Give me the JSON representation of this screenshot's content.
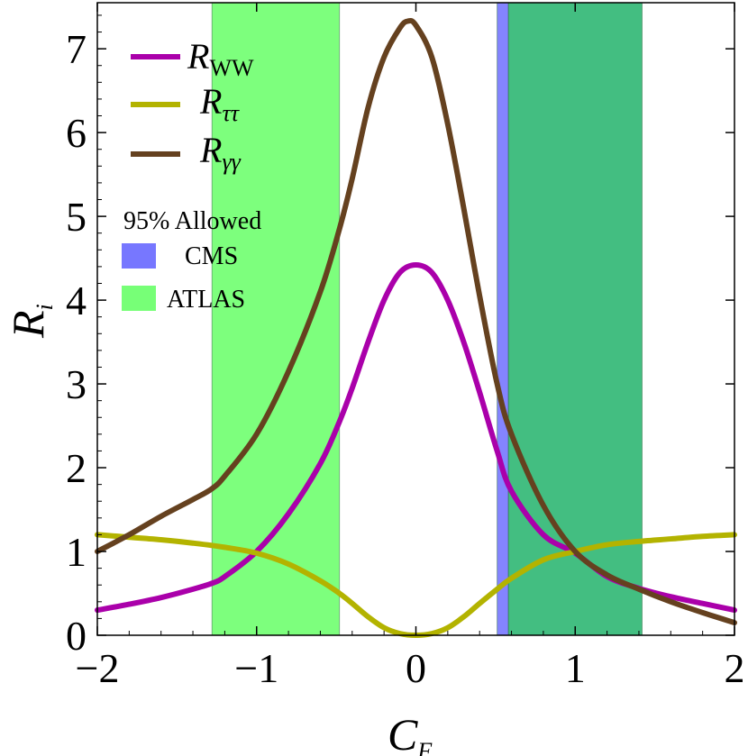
{
  "chart_data": {
    "type": "line",
    "xlabel": {
      "main": "C",
      "sub": "F"
    },
    "ylabel": {
      "main": "R",
      "sub": "i"
    },
    "xlim": [
      -2,
      2
    ],
    "ylim": [
      0,
      7.55
    ],
    "xticks": [
      {
        "value": -2,
        "label": "−2"
      },
      {
        "value": -1,
        "label": "−1"
      },
      {
        "value": 0,
        "label": "0"
      },
      {
        "value": 1,
        "label": "1"
      },
      {
        "value": 2,
        "label": "2"
      }
    ],
    "yticks": [
      {
        "value": 0,
        "label": "0"
      },
      {
        "value": 1,
        "label": "1"
      },
      {
        "value": 2,
        "label": "2"
      },
      {
        "value": 3,
        "label": "3"
      },
      {
        "value": 4,
        "label": "4"
      },
      {
        "value": 5,
        "label": "5"
      },
      {
        "value": 6,
        "label": "6"
      },
      {
        "value": 7,
        "label": "7"
      }
    ],
    "bands": [
      {
        "name": "ATLAS",
        "x": [
          -1.28,
          -0.48
        ],
        "color": "#66ff66",
        "opacity": 0.85
      },
      {
        "name": "ATLAS",
        "x": [
          0.58,
          1.42
        ],
        "color": "#22b36b",
        "opacity": 0.85
      },
      {
        "name": "CMS",
        "x": [
          0.51,
          0.58
        ],
        "color": "#7777ff",
        "opacity": 0.9
      }
    ],
    "series": [
      {
        "name": "R_WW",
        "label_main": "R",
        "label_sub": "WW",
        "color": "#aa00aa",
        "x": [
          -2,
          -1.8,
          -1.6,
          -1.4,
          -1.28,
          -1.2,
          -1.0,
          -0.8,
          -0.6,
          -0.48,
          -0.4,
          -0.3,
          -0.2,
          -0.1,
          0,
          0.1,
          0.2,
          0.3,
          0.4,
          0.51,
          0.6,
          0.8,
          1.0,
          1.2,
          1.4,
          1.6,
          1.8,
          2
        ],
        "y": [
          0.3,
          0.37,
          0.45,
          0.55,
          0.62,
          0.7,
          1.0,
          1.45,
          2.05,
          2.55,
          2.95,
          3.5,
          4.0,
          4.33,
          4.42,
          4.33,
          4.0,
          3.5,
          2.9,
          2.2,
          1.72,
          1.2,
          0.98,
          0.7,
          0.56,
          0.46,
          0.38,
          0.3
        ]
      },
      {
        "name": "R_ττ",
        "label_main": "R",
        "label_sub": "ττ",
        "color": "#b3b300",
        "x": [
          -2,
          -1.8,
          -1.6,
          -1.4,
          -1.2,
          -1.0,
          -0.8,
          -0.6,
          -0.48,
          -0.4,
          -0.3,
          -0.2,
          -0.1,
          0,
          0.1,
          0.2,
          0.3,
          0.4,
          0.51,
          0.6,
          0.8,
          1.0,
          1.2,
          1.4,
          1.6,
          1.8,
          2
        ],
        "y": [
          1.2,
          1.17,
          1.14,
          1.1,
          1.05,
          0.98,
          0.85,
          0.65,
          0.5,
          0.38,
          0.22,
          0.09,
          0.02,
          0.0,
          0.02,
          0.09,
          0.22,
          0.38,
          0.55,
          0.68,
          0.9,
          1.0,
          1.08,
          1.12,
          1.15,
          1.18,
          1.2
        ]
      },
      {
        "name": "R_γγ",
        "label_main": "R",
        "label_sub": "γγ",
        "color": "#65411f",
        "x": [
          -2,
          -1.8,
          -1.6,
          -1.4,
          -1.28,
          -1.2,
          -1.0,
          -0.8,
          -0.6,
          -0.48,
          -0.4,
          -0.3,
          -0.2,
          -0.1,
          -0.05,
          0,
          0.1,
          0.2,
          0.3,
          0.4,
          0.51,
          0.6,
          0.8,
          1.0,
          1.2,
          1.4,
          1.6,
          1.8,
          2
        ],
        "y": [
          1.0,
          1.2,
          1.42,
          1.62,
          1.75,
          1.9,
          2.4,
          3.15,
          4.1,
          4.85,
          5.45,
          6.3,
          6.9,
          7.25,
          7.33,
          7.28,
          6.9,
          6.1,
          5.1,
          4.05,
          3.0,
          2.4,
          1.55,
          1.0,
          0.72,
          0.55,
          0.4,
          0.27,
          0.15
        ]
      }
    ],
    "legend": {
      "placement": "top-left"
    },
    "region_legend": {
      "title": "95% Allowed",
      "items": [
        {
          "label": "CMS",
          "color": "#7777ff"
        },
        {
          "label": "ATLAS",
          "color": "#77ff77"
        }
      ]
    },
    "grid": false
  }
}
